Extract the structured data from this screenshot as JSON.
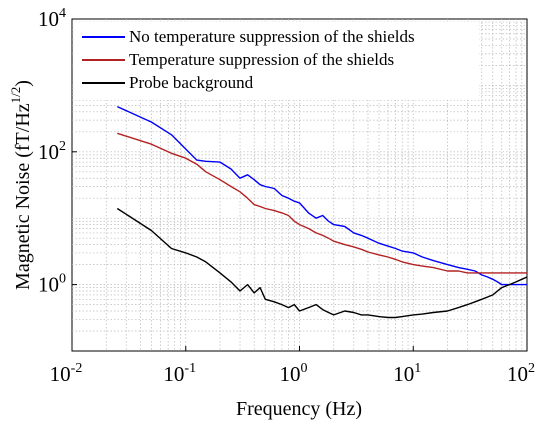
{
  "chart_data": {
    "type": "line",
    "xlabel": "Frequency (Hz)",
    "ylabel": "Magnetic Noise (fT/Hz",
    "ylabel_exponent": "1/2",
    "ylabel_suffix": ")",
    "x_scale": "log",
    "y_scale": "log",
    "xlim": [
      0.01,
      100
    ],
    "ylim": [
      0.1,
      10000
    ],
    "grid": true,
    "legend_position": "top",
    "x_ticks": [
      {
        "value": 0.01,
        "base": "10",
        "exp": "-2"
      },
      {
        "value": 0.1,
        "base": "10",
        "exp": "-1"
      },
      {
        "value": 1,
        "base": "10",
        "exp": "0"
      },
      {
        "value": 10,
        "base": "10",
        "exp": "1"
      },
      {
        "value": 100,
        "base": "10",
        "exp": "2"
      }
    ],
    "y_ticks": [
      {
        "value": 1,
        "base": "10",
        "exp": "0"
      },
      {
        "value": 100,
        "base": "10",
        "exp": "2"
      },
      {
        "value": 10000,
        "base": "10",
        "exp": "4"
      }
    ],
    "series": [
      {
        "name": "No temperature suppression of the shields",
        "color": "#0000ff",
        "x": [
          0.025,
          0.05,
          0.075,
          0.1,
          0.125,
          0.15,
          0.2,
          0.25,
          0.3,
          0.35,
          0.4,
          0.45,
          0.5,
          0.6,
          0.7,
          0.8,
          0.9,
          1.0,
          1.2,
          1.4,
          1.6,
          1.8,
          2.0,
          2.5,
          3.0,
          3.5,
          4.0,
          5.0,
          6.0,
          7.0,
          8.0,
          10,
          12,
          15,
          20,
          25,
          30,
          35,
          40,
          45,
          50,
          55,
          60,
          70,
          80,
          90,
          100
        ],
        "y": [
          480,
          280,
          180,
          110,
          75,
          72,
          70,
          55,
          40,
          45,
          38,
          32,
          30,
          28,
          22,
          20,
          18,
          17,
          12,
          10,
          11,
          9,
          8,
          7.5,
          6,
          5.5,
          5,
          4.2,
          3.8,
          3.5,
          3.2,
          3.0,
          2.6,
          2.3,
          2.0,
          1.8,
          1.7,
          1.6,
          1.4,
          1.3,
          1.2,
          1.1,
          1.0,
          1.0,
          1.0,
          1.0,
          1.0
        ]
      },
      {
        "name": "Temperature suppression of the shields",
        "color": "#b22222",
        "x": [
          0.025,
          0.05,
          0.075,
          0.1,
          0.125,
          0.15,
          0.2,
          0.25,
          0.3,
          0.35,
          0.4,
          0.45,
          0.5,
          0.6,
          0.7,
          0.8,
          0.9,
          1.0,
          1.2,
          1.4,
          1.6,
          1.8,
          2.0,
          2.5,
          3.0,
          3.5,
          4.0,
          5.0,
          6.0,
          7.0,
          8.0,
          10,
          12,
          15,
          20,
          25,
          30,
          35,
          40,
          45,
          50,
          55,
          60,
          70,
          80,
          90,
          100
        ],
        "y": [
          190,
          130,
          95,
          80,
          65,
          50,
          38,
          30,
          25,
          20,
          16,
          15,
          14,
          13,
          12,
          11,
          9,
          8,
          7,
          6,
          5.5,
          5,
          4.5,
          4,
          3.7,
          3.4,
          3.1,
          2.8,
          2.6,
          2.4,
          2.2,
          2.0,
          1.9,
          1.8,
          1.6,
          1.6,
          1.5,
          1.5,
          1.5,
          1.5,
          1.5,
          1.5,
          1.5,
          1.5,
          1.5,
          1.5,
          1.5
        ]
      },
      {
        "name": "Probe background",
        "color": "#000000",
        "x": [
          0.025,
          0.05,
          0.075,
          0.1,
          0.125,
          0.15,
          0.2,
          0.25,
          0.3,
          0.35,
          0.4,
          0.45,
          0.5,
          0.6,
          0.7,
          0.8,
          0.9,
          1.0,
          1.2,
          1.4,
          1.6,
          1.8,
          2.0,
          2.5,
          3.0,
          3.5,
          4.0,
          5.0,
          6.0,
          7.0,
          8.0,
          10,
          12,
          15,
          20,
          25,
          30,
          35,
          40,
          45,
          50,
          55,
          60,
          70,
          80,
          90,
          100
        ],
        "y": [
          14,
          6.5,
          3.5,
          3.0,
          2.6,
          2.2,
          1.5,
          1.1,
          0.8,
          1.0,
          0.75,
          0.9,
          0.6,
          0.55,
          0.5,
          0.45,
          0.5,
          0.4,
          0.45,
          0.5,
          0.42,
          0.38,
          0.35,
          0.4,
          0.38,
          0.35,
          0.35,
          0.33,
          0.32,
          0.32,
          0.33,
          0.35,
          0.36,
          0.38,
          0.4,
          0.45,
          0.5,
          0.55,
          0.6,
          0.65,
          0.7,
          0.8,
          0.9,
          1.0,
          1.1,
          1.2,
          1.3
        ]
      }
    ]
  }
}
